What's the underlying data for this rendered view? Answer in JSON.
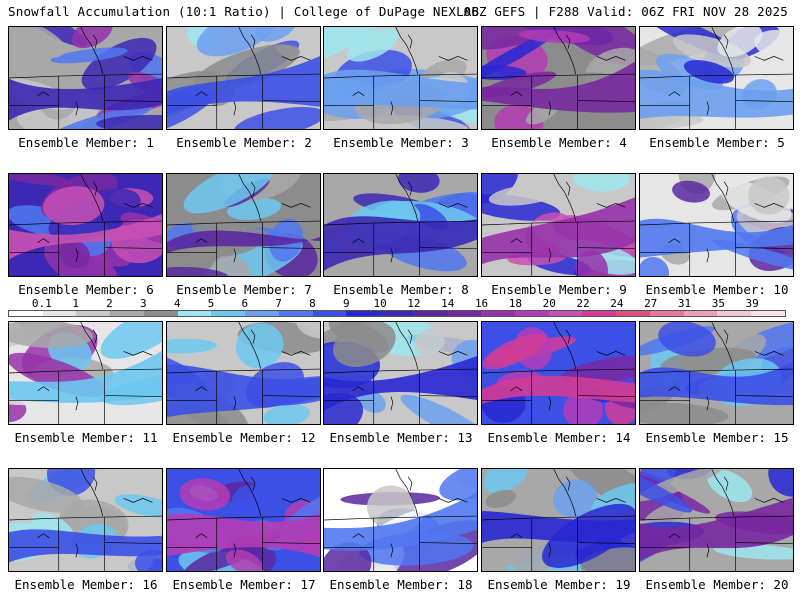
{
  "header": {
    "title": "Snowfall Accumulation (10:1 Ratio) | College of DuPage NEXLAB",
    "model_info": "06Z GEFS | F288 Valid: 06Z FRI NOV 28 2025"
  },
  "panels": [
    {
      "label": "Ensemble Member: 1"
    },
    {
      "label": "Ensemble Member: 2"
    },
    {
      "label": "Ensemble Member: 3"
    },
    {
      "label": "Ensemble Member: 4"
    },
    {
      "label": "Ensemble Member: 5"
    },
    {
      "label": "Ensemble Member: 6"
    },
    {
      "label": "Ensemble Member: 7"
    },
    {
      "label": "Ensemble Member: 8"
    },
    {
      "label": "Ensemble Member: 9"
    },
    {
      "label": "Ensemble Member: 10"
    },
    {
      "label": "Ensemble Member: 11"
    },
    {
      "label": "Ensemble Member: 12"
    },
    {
      "label": "Ensemble Member: 13"
    },
    {
      "label": "Ensemble Member: 14"
    },
    {
      "label": "Ensemble Member: 15"
    },
    {
      "label": "Ensemble Member: 16"
    },
    {
      "label": "Ensemble Member: 17"
    },
    {
      "label": "Ensemble Member: 18"
    },
    {
      "label": "Ensemble Member: 19"
    },
    {
      "label": "Ensemble Member: 20"
    }
  ],
  "colorbar": {
    "ticks": [
      "0.1",
      "1",
      "2",
      "3",
      "4",
      "5",
      "6",
      "7",
      "8",
      "9",
      "10",
      "12",
      "14",
      "16",
      "18",
      "20",
      "22",
      "24",
      "27",
      "31",
      "35",
      "39"
    ],
    "colors": [
      "#ffffff",
      "#e6e6e6",
      "#c8c8c8",
      "#a8a8a8",
      "#8c8c8c",
      "#9ee6f0",
      "#6cc8f0",
      "#6ca0f0",
      "#5078f0",
      "#3c50e6",
      "#2828d2",
      "#3c28b4",
      "#5a28a0",
      "#7828a0",
      "#9632aa",
      "#b43cb4",
      "#c850b4",
      "#d23c96",
      "#dc5078",
      "#e67896",
      "#eca0b4",
      "#f0c8d2",
      "#f5e1e6"
    ]
  }
}
